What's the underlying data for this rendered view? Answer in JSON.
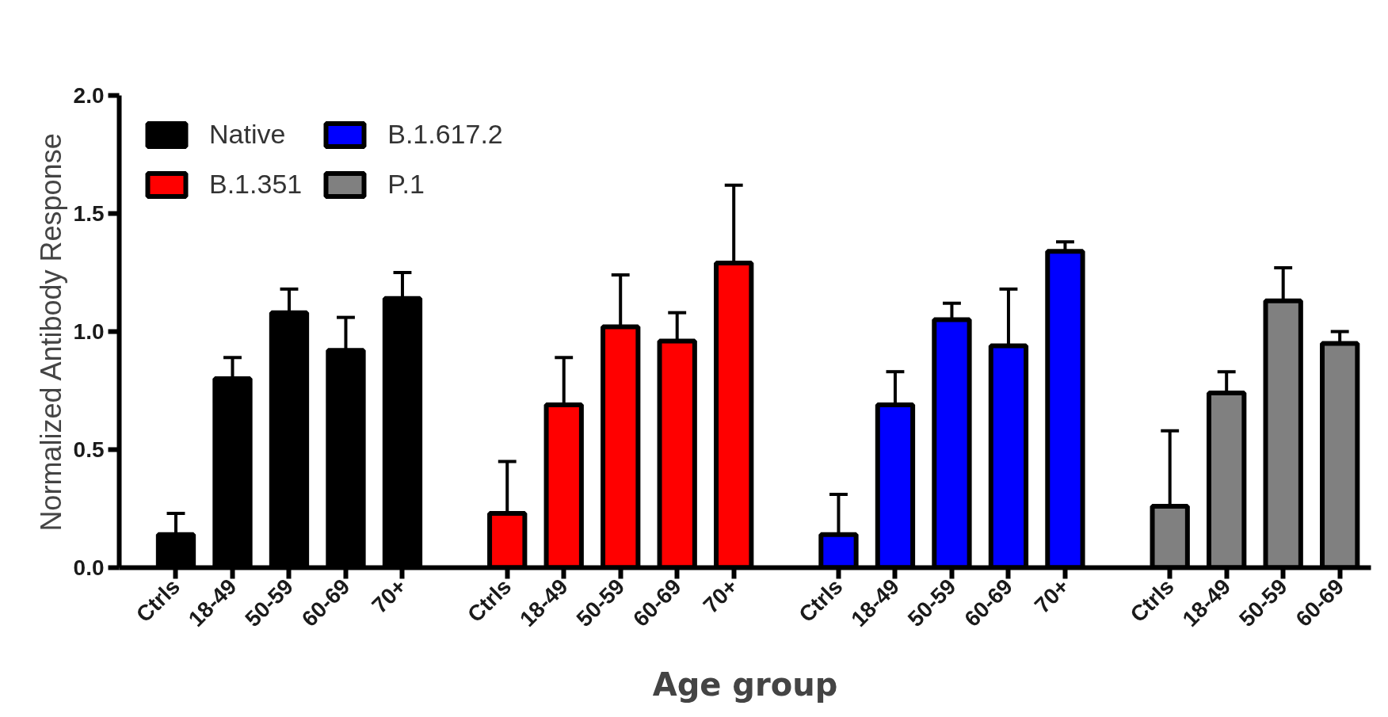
{
  "chart_data": {
    "type": "bar",
    "xlabel": "Age group",
    "ylabel": "Normalized Antibody Response",
    "categories": [
      "Ctrls",
      "18-49",
      "50-59",
      "60-69",
      "70+",
      "Ctrls",
      "18-49",
      "50-59",
      "60-69",
      "70+",
      "Ctrls",
      "18-49",
      "50-59",
      "60-69",
      "70+",
      "Ctrls",
      "18-49",
      "50-59",
      "60-69"
    ],
    "series": [
      {
        "name": "Native",
        "color": "#000000",
        "values": [
          0.14,
          0.8,
          1.08,
          0.92,
          1.14,
          null,
          null,
          null,
          null,
          null,
          null,
          null,
          null,
          null,
          null,
          null,
          null,
          null,
          null
        ],
        "errors": [
          [
            0.14,
            0.23
          ],
          [
            0.8,
            0.89
          ],
          [
            1.08,
            1.18
          ],
          [
            0.92,
            1.06
          ],
          [
            1.14,
            1.25
          ],
          null,
          null,
          null,
          null,
          null,
          null,
          null,
          null,
          null,
          null,
          null,
          null,
          null,
          null
        ]
      },
      {
        "name": "B.1.351",
        "color": "#ff0000",
        "values": [
          null,
          null,
          null,
          null,
          null,
          0.23,
          0.69,
          1.02,
          0.96,
          1.29,
          null,
          null,
          null,
          null,
          null,
          null,
          null,
          null,
          null
        ],
        "errors": [
          null,
          null,
          null,
          null,
          null,
          [
            0.23,
            0.45
          ],
          [
            0.69,
            0.89
          ],
          [
            1.02,
            1.24
          ],
          [
            0.96,
            1.08
          ],
          [
            1.29,
            1.62
          ],
          null,
          null,
          null,
          null,
          null,
          null,
          null,
          null,
          null
        ]
      },
      {
        "name": "B.1.617.2",
        "color": "#0000ff",
        "values": [
          null,
          null,
          null,
          null,
          null,
          null,
          null,
          null,
          null,
          null,
          0.14,
          0.69,
          1.05,
          0.94,
          1.34,
          null,
          null,
          null,
          null
        ],
        "errors": [
          null,
          null,
          null,
          null,
          null,
          null,
          null,
          null,
          null,
          null,
          [
            0.14,
            0.31
          ],
          [
            0.69,
            0.83
          ],
          [
            1.05,
            1.12
          ],
          [
            0.94,
            1.18
          ],
          [
            1.34,
            1.38
          ],
          null,
          null,
          null,
          null
        ]
      },
      {
        "name": "P.1",
        "color": "#808080",
        "values": [
          null,
          null,
          null,
          null,
          null,
          null,
          null,
          null,
          null,
          null,
          null,
          null,
          null,
          null,
          null,
          0.26,
          0.74,
          1.13,
          0.95
        ],
        "errors": [
          null,
          null,
          null,
          null,
          null,
          null,
          null,
          null,
          null,
          null,
          null,
          null,
          null,
          null,
          null,
          [
            0.26,
            0.58
          ],
          [
            0.74,
            0.83
          ],
          [
            1.13,
            1.27
          ],
          [
            0.95,
            1.0
          ]
        ]
      }
    ],
    "ylim": [
      0,
      2.0
    ],
    "yticks": [
      {
        "value": 0,
        "label": "0.0"
      },
      {
        "value": 0.5,
        "label": "0.5"
      },
      {
        "value": 1.0,
        "label": "1.0"
      },
      {
        "value": 1.5,
        "label": "1.5"
      },
      {
        "value": 2.0,
        "label": "2.0"
      }
    ],
    "grid": false,
    "legend": "top left"
  }
}
